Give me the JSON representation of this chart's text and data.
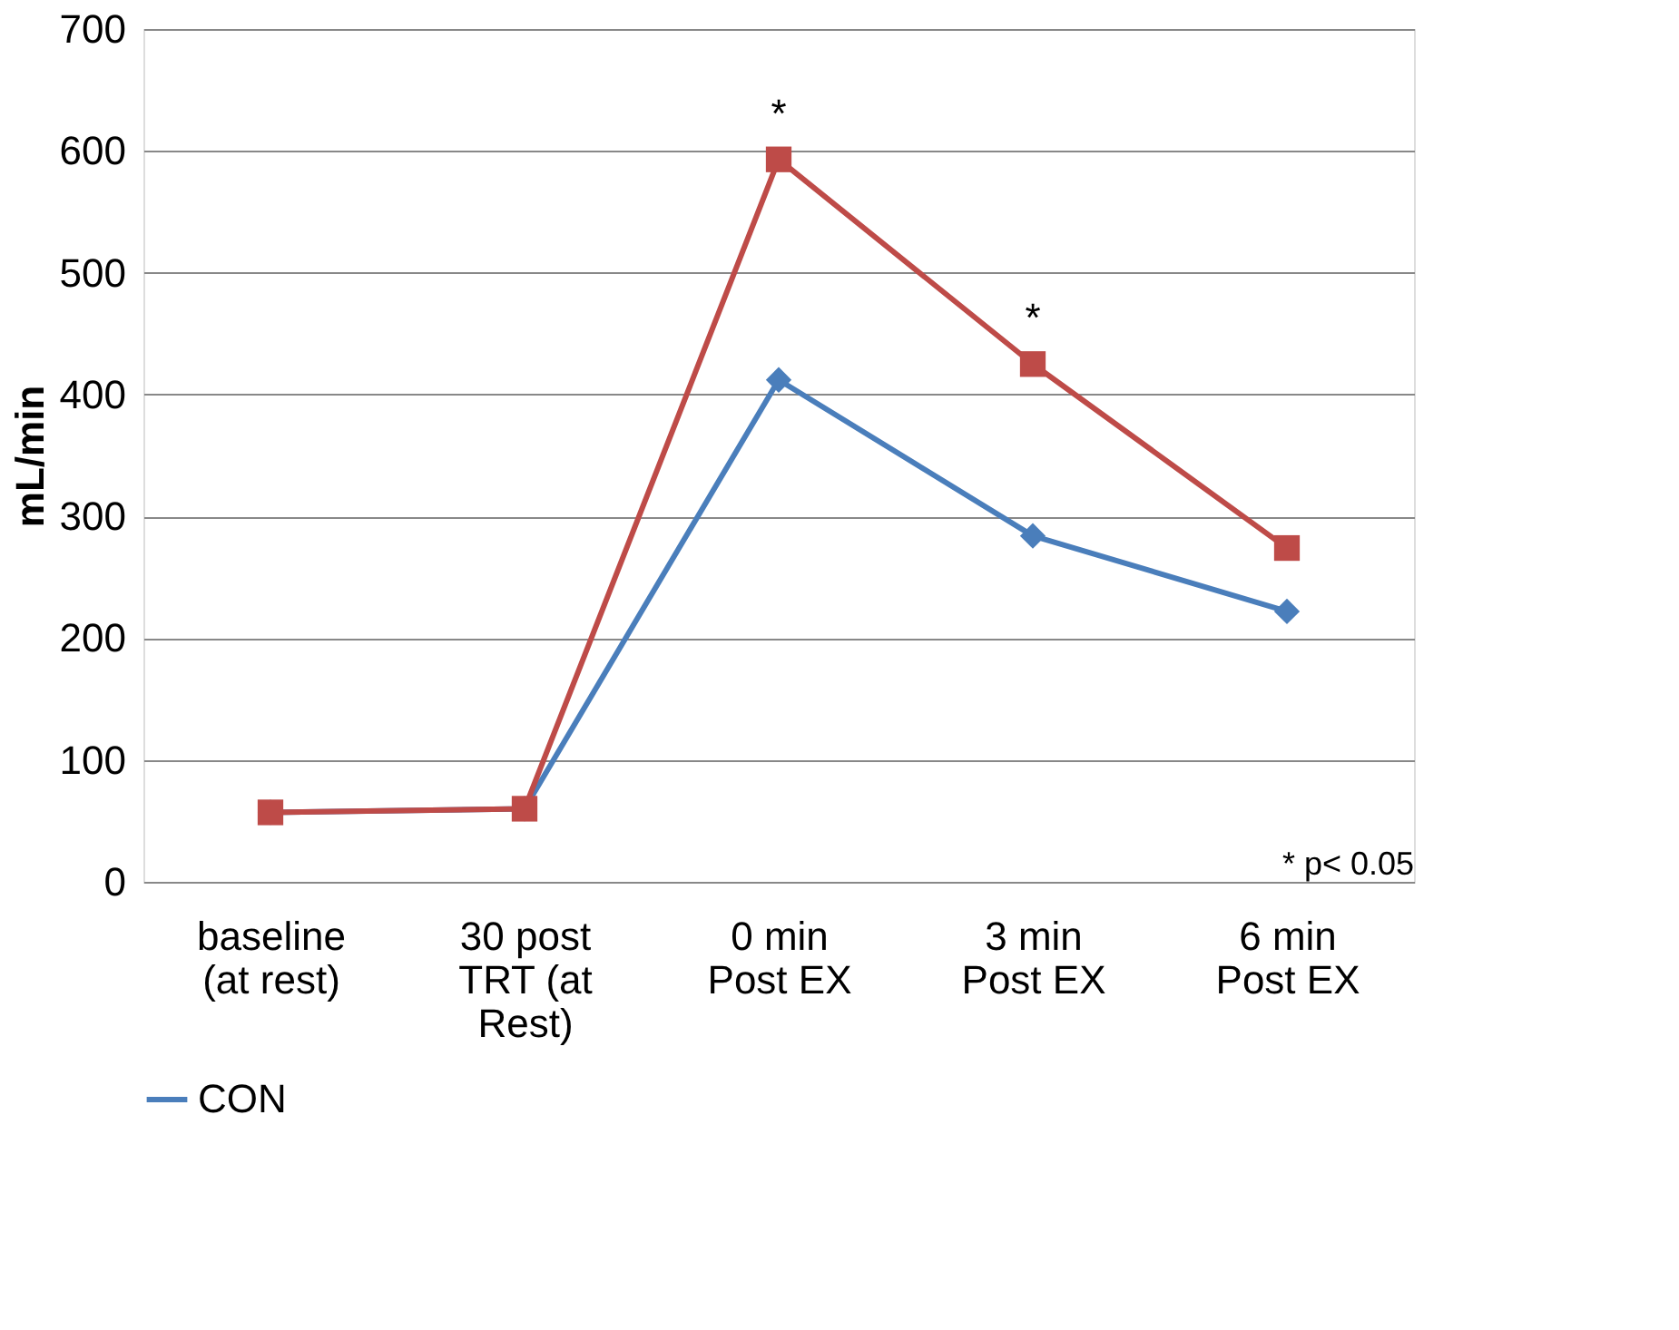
{
  "chart_data": {
    "type": "line",
    "ylabel": "mL/min",
    "categories": [
      "baseline (at rest)",
      "30 post TRT (at Rest)",
      "0 min Post EX",
      "3 min Post EX",
      "6 min Post EX"
    ],
    "series": [
      {
        "name": "CON",
        "color": "#4a7ebb",
        "marker": "diamond",
        "values": [
          57,
          60,
          412,
          284,
          222
        ]
      },
      {
        "color": "#be4b48",
        "marker": "square",
        "values": [
          57,
          60,
          593,
          425,
          274
        ]
      }
    ],
    "ylim": [
      0,
      700
    ],
    "yticks": [
      0,
      100,
      200,
      300,
      400,
      500,
      600,
      700
    ],
    "grid": "y",
    "legend": "bottom",
    "line_style": "solid",
    "annotations": [
      {
        "text": "*",
        "x": "0 min Post EX",
        "y": 593
      },
      {
        "text": "*",
        "x": "3 min Post EX",
        "y": 425
      },
      "* p< 0.05"
    ]
  }
}
